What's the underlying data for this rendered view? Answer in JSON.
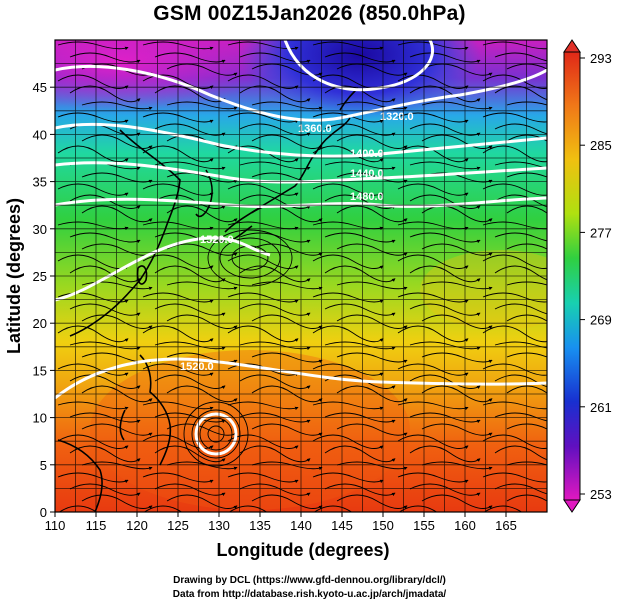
{
  "title": "GSM 00Z15Jan2026 (850.0hPa)",
  "axes": {
    "xlabel": "Longitude (degrees)",
    "ylabel": "Latitude  (degrees)",
    "x_ticks": [
      "110",
      "115",
      "120",
      "125",
      "130",
      "135",
      "140",
      "145",
      "150",
      "155",
      "160",
      "165"
    ],
    "y_ticks": [
      "0",
      "5",
      "10",
      "15",
      "20",
      "25",
      "30",
      "35",
      "40",
      "45"
    ],
    "xlim": [
      110,
      170
    ],
    "ylim": [
      0,
      50
    ]
  },
  "colorbar": {
    "ticks": [
      "293",
      "285",
      "277",
      "269",
      "261",
      "253"
    ],
    "range": [
      253,
      293
    ],
    "colors": [
      "#e01ec0",
      "#2a10c8",
      "#1e7cf0",
      "#18c8d0",
      "#28d04a",
      "#a8e020",
      "#f0d810",
      "#f08010",
      "#e83010"
    ]
  },
  "contours": {
    "color": "#ffffff",
    "labels": [
      "1320.0",
      "1360.0",
      "1400.0",
      "1440.0",
      "1480.0",
      "1520.0",
      "1520.0"
    ]
  },
  "credits": [
    "Drawing by DCL (https://www.gfd-dennou.org/library/dcl/)",
    "Data from http://database.rish.kyoto-u.ac.jp/arch/jmadata/"
  ]
}
